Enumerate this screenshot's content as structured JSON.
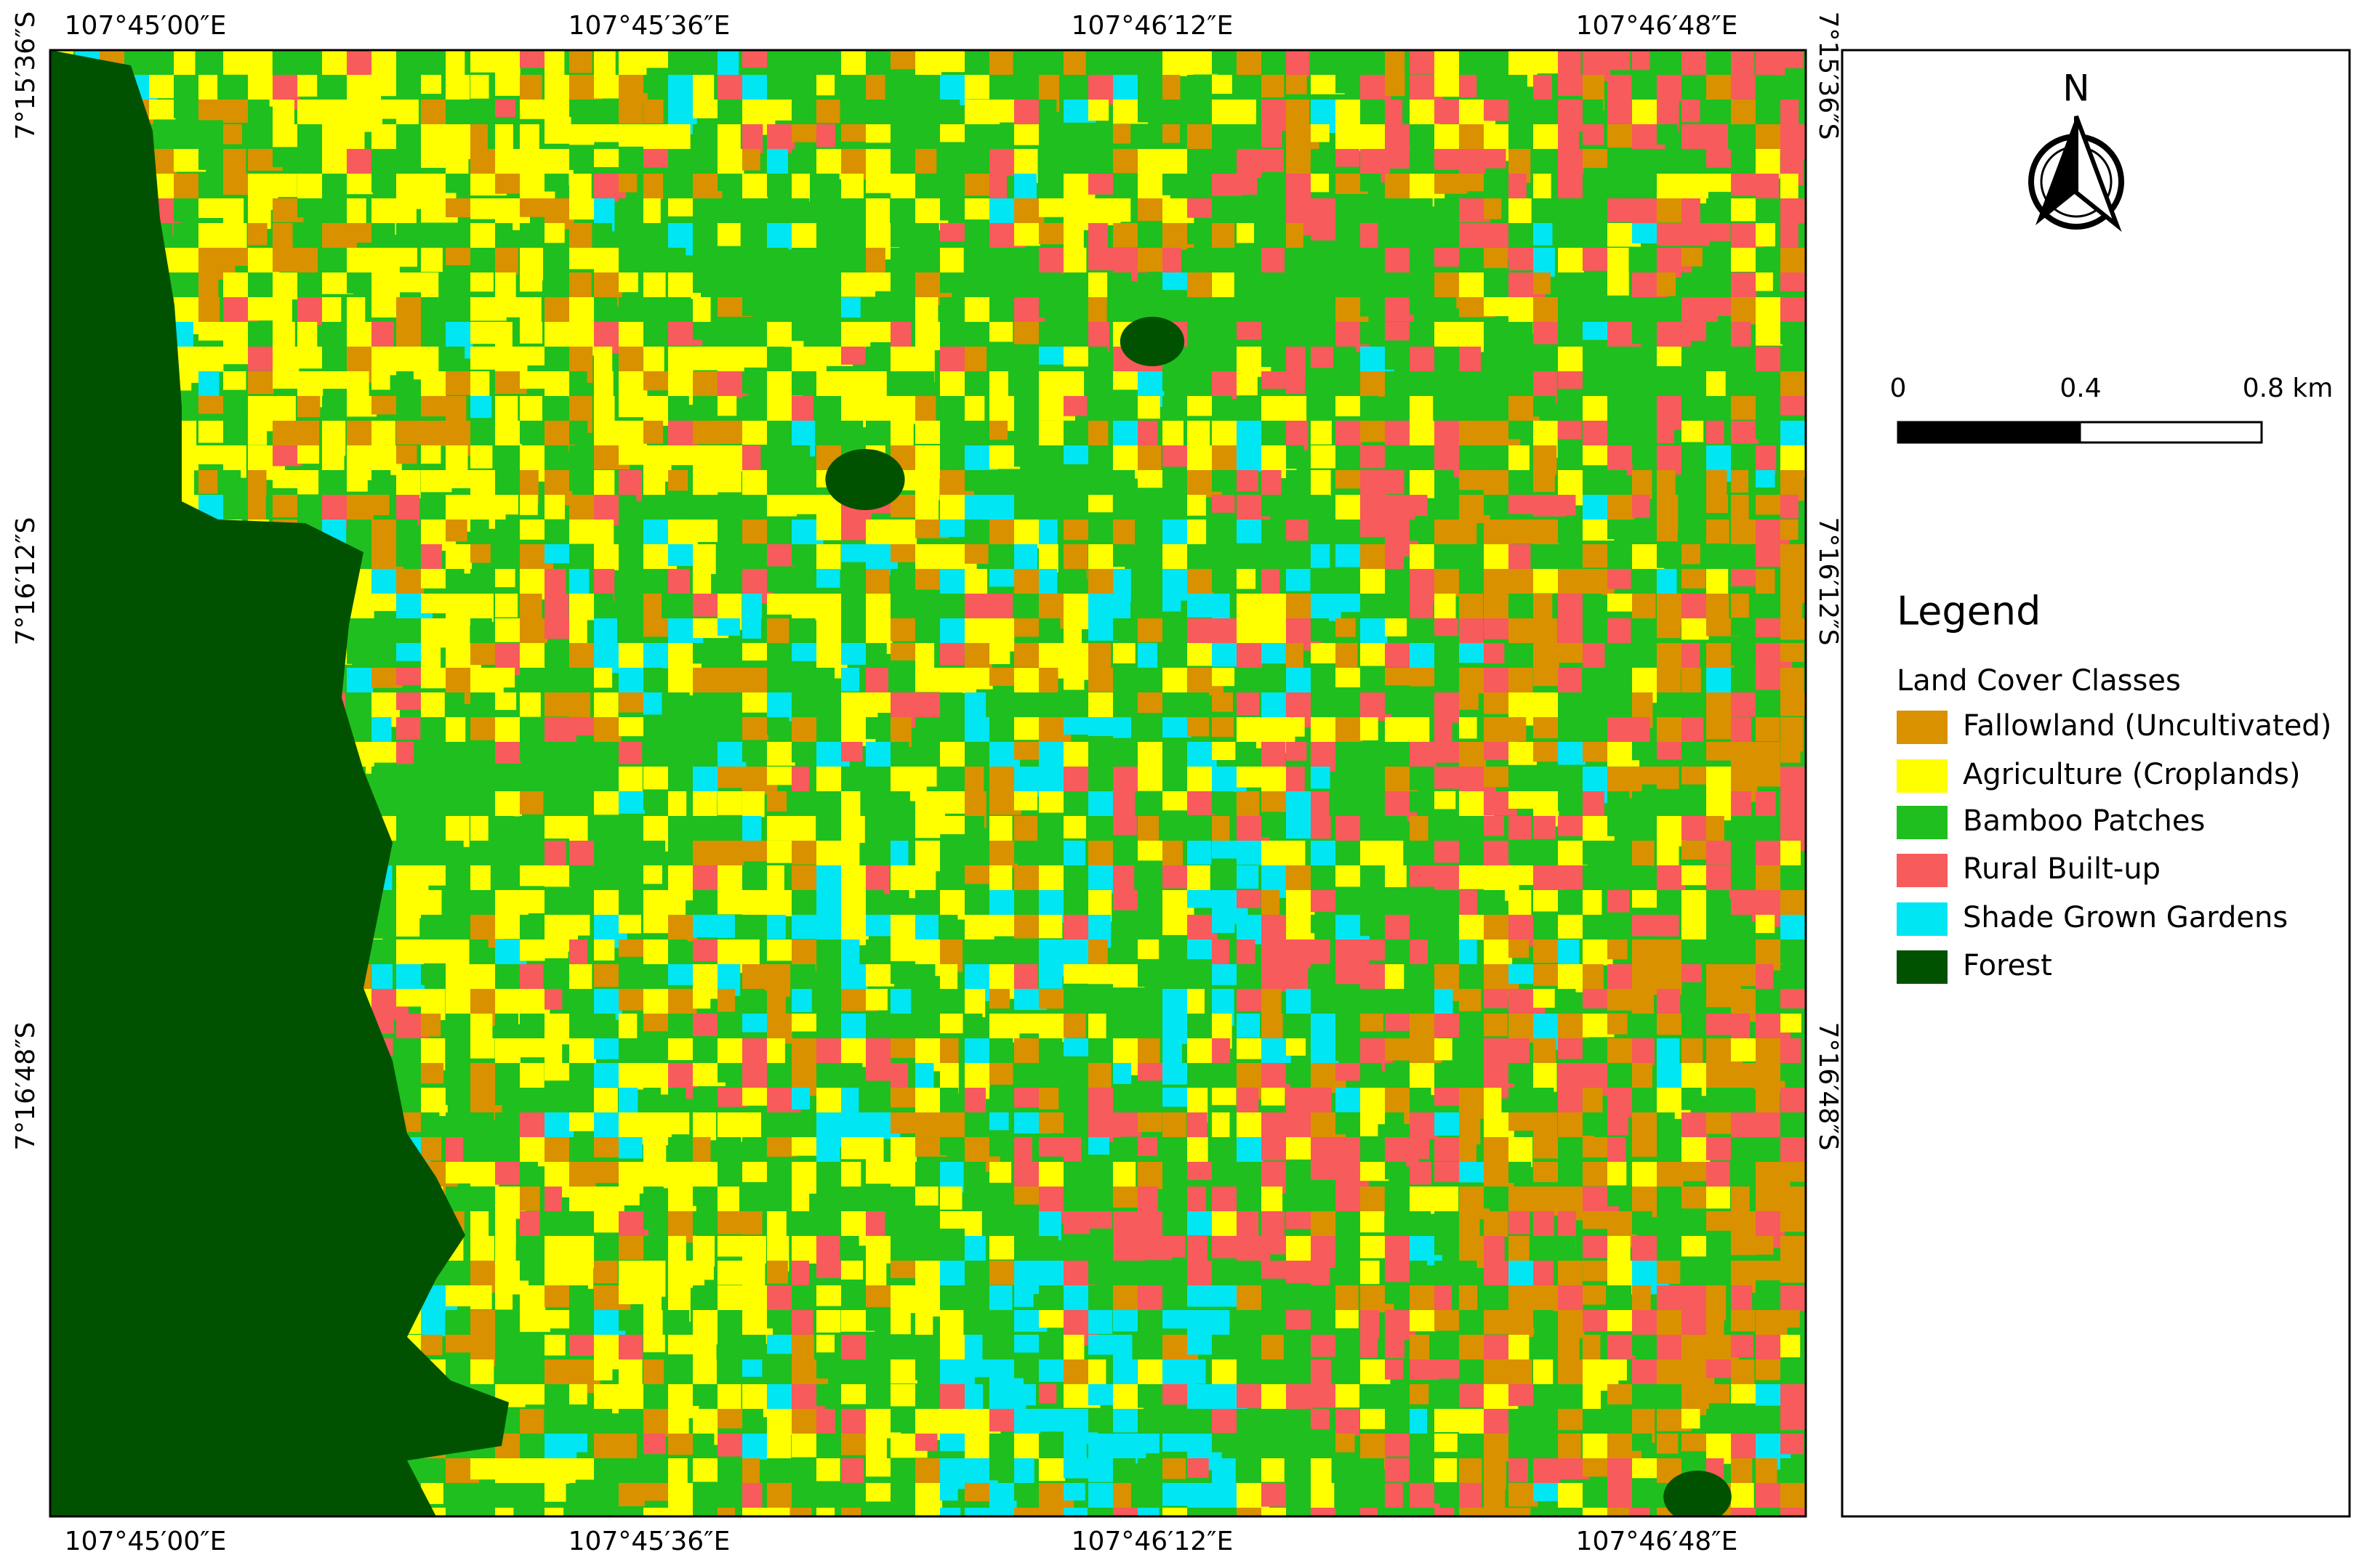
{
  "map": {
    "coordinates": {
      "top": [
        "107°45′00″E",
        "107°45′36″E",
        "107°46′12″E",
        "107°46′48″E"
      ],
      "bottom": [
        "107°45′00″E",
        "107°45′36″E",
        "107°46′12″E",
        "107°46′48″E"
      ],
      "left": [
        "7°15′36″S",
        "7°16′12″S",
        "7°16′48″S"
      ],
      "right": [
        "7°15′36″S",
        "7°16′12″S",
        "7°16′48″S"
      ]
    },
    "north_arrow": "N",
    "scale_bar": {
      "labels": [
        "0",
        "0.4",
        "0.8 km"
      ]
    },
    "legend": {
      "title": "Legend",
      "subtitle": "Land Cover Classes",
      "classes": [
        {
          "name": "Fallowland (Uncultivated)",
          "color": "#d99100"
        },
        {
          "name": "Agriculture (Croplands)",
          "color": "#ffff00"
        },
        {
          "name": "Bamboo Patches",
          "color": "#1fbf1f"
        },
        {
          "name": "Rural Built-up",
          "color": "#f75b5b"
        },
        {
          "name": "Shade Grown Gardens",
          "color": "#00e6f2"
        },
        {
          "name": "Forest",
          "color": "#005200"
        }
      ]
    }
  }
}
